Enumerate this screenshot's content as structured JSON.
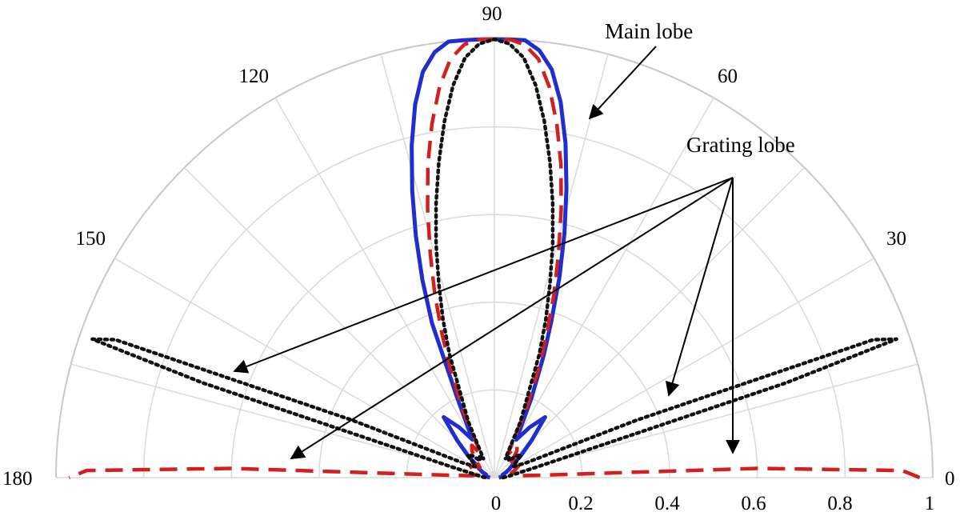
{
  "chart_data": {
    "type": "polar",
    "semicircle": true,
    "angle_ticks": [
      "0",
      "30",
      "60",
      "90",
      "120",
      "150",
      "180"
    ],
    "radius_ticks": [
      "0",
      "0.2",
      "0.4",
      "0.6",
      "0.8",
      "1"
    ],
    "rlim": [
      0,
      1
    ],
    "angle_range_deg": [
      0,
      180
    ],
    "grid": true,
    "annotations": [
      {
        "text": "Main lobe",
        "points_to_angle_deg": [
          82
        ]
      },
      {
        "text": "Grating lobe",
        "points_to_angle_deg": [
          165,
          155,
          30,
          20
        ]
      }
    ],
    "series": [
      {
        "color": "#1f2ecc",
        "style": "solid",
        "angles_deg": [
          0,
          5,
          10,
          15,
          20,
          25,
          30,
          35,
          40,
          45,
          50,
          55,
          60,
          65,
          68,
          70,
          72,
          74,
          76,
          78,
          80,
          82,
          84,
          86,
          88,
          90,
          92,
          94,
          96,
          98,
          100,
          102,
          104,
          106,
          108,
          110,
          112,
          115,
          120,
          125,
          130,
          135,
          140,
          145,
          150,
          155,
          160,
          165,
          170,
          175,
          180
        ],
        "r": [
          0.01,
          0.015,
          0.02,
          0.02,
          0.02,
          0.03,
          0.04,
          0.05,
          0.08,
          0.12,
          0.18,
          0.14,
          0.1,
          0.2,
          0.3,
          0.38,
          0.48,
          0.58,
          0.68,
          0.78,
          0.87,
          0.94,
          0.98,
          1.0,
          1.0,
          1.0,
          1.0,
          1.0,
          1.0,
          0.98,
          0.94,
          0.87,
          0.78,
          0.68,
          0.58,
          0.48,
          0.38,
          0.2,
          0.1,
          0.14,
          0.18,
          0.12,
          0.08,
          0.05,
          0.04,
          0.03,
          0.02,
          0.02,
          0.02,
          0.015,
          0.01
        ]
      },
      {
        "color": "#d41f1f",
        "style": "dashed",
        "angles_deg": [
          0,
          1,
          2,
          3,
          5,
          10,
          15,
          20,
          25,
          30,
          35,
          40,
          45,
          50,
          55,
          60,
          65,
          68,
          70,
          72,
          74,
          76,
          78,
          80,
          82,
          84,
          86,
          88,
          90,
          92,
          94,
          96,
          98,
          100,
          102,
          104,
          106,
          108,
          110,
          112,
          115,
          120,
          125,
          130,
          135,
          140,
          145,
          150,
          155,
          160,
          165,
          170,
          175,
          177,
          178,
          179,
          180
        ],
        "r": [
          0.97,
          0.93,
          0.6,
          0.1,
          0.05,
          0.04,
          0.04,
          0.05,
          0.06,
          0.05,
          0.04,
          0.05,
          0.06,
          0.08,
          0.09,
          0.06,
          0.17,
          0.27,
          0.35,
          0.44,
          0.53,
          0.63,
          0.73,
          0.82,
          0.9,
          0.96,
          0.99,
          1.0,
          1.0,
          1.0,
          0.99,
          0.96,
          0.9,
          0.82,
          0.73,
          0.63,
          0.53,
          0.44,
          0.35,
          0.27,
          0.17,
          0.06,
          0.09,
          0.08,
          0.06,
          0.05,
          0.04,
          0.05,
          0.06,
          0.05,
          0.04,
          0.04,
          0.05,
          0.1,
          0.6,
          0.93,
          0.97
        ]
      },
      {
        "color": "#111111",
        "style": "dotted",
        "angles_deg": [
          0,
          5,
          10,
          14,
          18,
          19,
          20,
          22,
          25,
          30,
          35,
          40,
          45,
          50,
          55,
          60,
          65,
          70,
          72,
          74,
          76,
          78,
          80,
          82,
          84,
          86,
          88,
          90,
          92,
          94,
          96,
          98,
          100,
          102,
          104,
          106,
          108,
          110,
          115,
          120,
          125,
          130,
          135,
          140,
          145,
          150,
          155,
          158,
          160,
          161,
          162,
          166,
          170,
          175,
          180
        ],
        "r": [
          0.02,
          0.03,
          0.05,
          0.1,
          0.7,
          0.97,
          0.92,
          0.35,
          0.08,
          0.05,
          0.06,
          0.08,
          0.07,
          0.05,
          0.06,
          0.05,
          0.14,
          0.3,
          0.38,
          0.46,
          0.55,
          0.64,
          0.73,
          0.82,
          0.9,
          0.96,
          0.99,
          1.0,
          0.99,
          0.96,
          0.9,
          0.82,
          0.73,
          0.64,
          0.55,
          0.46,
          0.38,
          0.3,
          0.14,
          0.05,
          0.06,
          0.05,
          0.07,
          0.08,
          0.06,
          0.05,
          0.08,
          0.35,
          0.92,
          0.97,
          0.7,
          0.1,
          0.05,
          0.03,
          0.02
        ]
      }
    ]
  }
}
